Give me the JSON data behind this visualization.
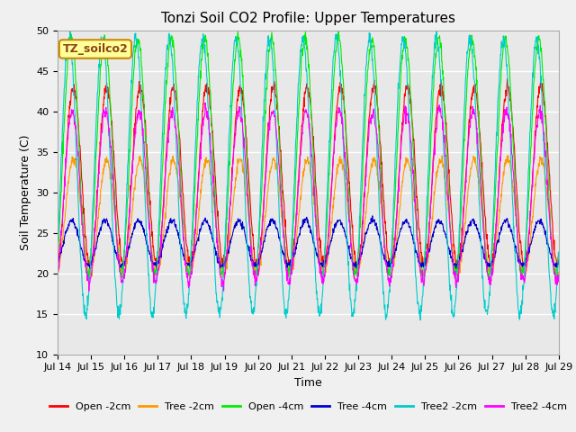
{
  "title": "Tonzi Soil CO2 Profile: Upper Temperatures",
  "xlabel": "Time",
  "ylabel": "Soil Temperature (C)",
  "ylim": [
    10,
    50
  ],
  "yticks": [
    10,
    15,
    20,
    25,
    30,
    35,
    40,
    45,
    50
  ],
  "xtick_labels": [
    "Jul 14",
    "Jul 15",
    "Jul 16",
    "Jul 17",
    "Jul 18",
    "Jul 19",
    "Jul 20",
    "Jul 21",
    "Jul 22",
    "Jul 23",
    "Jul 24",
    "Jul 25",
    "Jul 26",
    "Jul 27",
    "Jul 28",
    "Jul 29"
  ],
  "annotation_text": "TZ_soilco2",
  "annotation_color": "#8B4513",
  "annotation_bg": "#ffff99",
  "annotation_edge": "#cc8800",
  "series": [
    {
      "label": "Open -2cm",
      "color": "#ff0000"
    },
    {
      "label": "Tree -2cm",
      "color": "#ff9900"
    },
    {
      "label": "Open -4cm",
      "color": "#00ee00"
    },
    {
      "label": "Tree -4cm",
      "color": "#0000cc"
    },
    {
      "label": "Tree2 -2cm",
      "color": "#00cccc"
    },
    {
      "label": "Tree2 -4cm",
      "color": "#ff00ff"
    }
  ],
  "bg_color": "#e8e8e8",
  "fig_color": "#f0f0f0",
  "grid_color": "#ffffff",
  "n_points": 1440,
  "days": 15,
  "title_fontsize": 11,
  "axis_label_fontsize": 9,
  "tick_fontsize": 8,
  "legend_fontsize": 8
}
